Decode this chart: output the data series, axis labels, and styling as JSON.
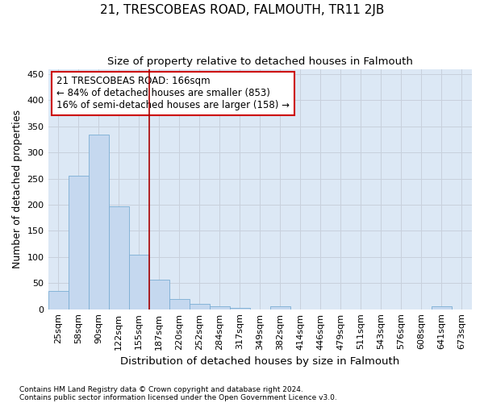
{
  "title": "21, TRESCOBEAS ROAD, FALMOUTH, TR11 2JB",
  "subtitle": "Size of property relative to detached houses in Falmouth",
  "xlabel": "Distribution of detached houses by size in Falmouth",
  "ylabel": "Number of detached properties",
  "footnote1": "Contains HM Land Registry data © Crown copyright and database right 2024.",
  "footnote2": "Contains public sector information licensed under the Open Government Licence v3.0.",
  "annotation_line1": "21 TRESCOBEAS ROAD: 166sqm",
  "annotation_line2": "← 84% of detached houses are smaller (853)",
  "annotation_line3": "16% of semi-detached houses are larger (158) →",
  "bar_values": [
    35,
    255,
    335,
    197,
    105,
    57,
    19,
    10,
    6,
    3,
    0,
    5,
    0,
    0,
    0,
    0,
    0,
    0,
    0,
    5,
    0
  ],
  "bin_labels": [
    "25sqm",
    "58sqm",
    "90sqm",
    "122sqm",
    "155sqm",
    "187sqm",
    "220sqm",
    "252sqm",
    "284sqm",
    "317sqm",
    "349sqm",
    "382sqm",
    "414sqm",
    "446sqm",
    "479sqm",
    "511sqm",
    "543sqm",
    "576sqm",
    "608sqm",
    "641sqm",
    "673sqm"
  ],
  "bar_color": "#c5d8ef",
  "bar_edge_color": "#7badd4",
  "grid_color": "#c8d0dc",
  "plot_bg_color": "#dce8f5",
  "fig_bg_color": "#ffffff",
  "red_line_x": 4.5,
  "red_line_color": "#aa0000",
  "annotation_box_color": "#ffffff",
  "annotation_box_edge": "#cc0000",
  "ylim": [
    0,
    460
  ],
  "yticks": [
    0,
    50,
    100,
    150,
    200,
    250,
    300,
    350,
    400,
    450
  ],
  "title_fontsize": 11,
  "subtitle_fontsize": 9.5,
  "ylabel_fontsize": 9,
  "xlabel_fontsize": 9.5,
  "tick_fontsize": 8,
  "annotation_fontsize": 8.5,
  "footnote_fontsize": 6.5
}
